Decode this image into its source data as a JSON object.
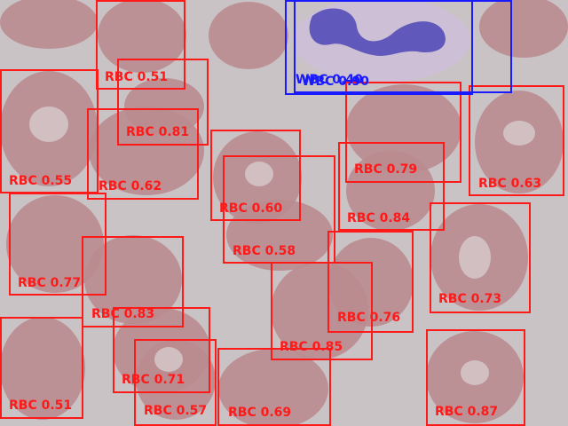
{
  "detections": [
    {
      "label": "RBC 0.51",
      "kind": "rbc"
    },
    {
      "label": "RBC 0.81",
      "kind": "rbc"
    },
    {
      "label": "RBC 0.55",
      "kind": "rbc"
    },
    {
      "label": "RBC 0.62",
      "kind": "rbc"
    },
    {
      "label": "RBC 0.60",
      "kind": "rbc"
    },
    {
      "label": "RBC 0.58",
      "kind": "rbc"
    },
    {
      "label": "RBC 0.79",
      "kind": "rbc"
    },
    {
      "label": "RBC 0.84",
      "kind": "rbc"
    },
    {
      "label": "RBC 0.63",
      "kind": "rbc"
    },
    {
      "label": "RBC 0.77",
      "kind": "rbc"
    },
    {
      "label": "RBC 0.83",
      "kind": "rbc"
    },
    {
      "label": "RBC 0.76",
      "kind": "rbc"
    },
    {
      "label": "RBC 0.73",
      "kind": "rbc"
    },
    {
      "label": "RBC 0.85",
      "kind": "rbc"
    },
    {
      "label": "RBC 0.71",
      "kind": "rbc"
    },
    {
      "label": "RBC 0.57",
      "kind": "rbc"
    },
    {
      "label": "RBC 0.69",
      "kind": "rbc"
    },
    {
      "label": "RBC 0.87",
      "kind": "rbc"
    },
    {
      "label": "RBC 0.51",
      "kind": "rbc"
    },
    {
      "label": "WBC 0.40",
      "kind": "wbc"
    },
    {
      "label": "WBC 0.90",
      "kind": "wbc"
    }
  ],
  "colors": {
    "rbc_box": "#ff1a1a",
    "wbc_box": "#1a1aff",
    "background": "#c9c3c6",
    "rbc_cell": "#b98a8e",
    "wbc_nucleus": "#5a52b8"
  }
}
